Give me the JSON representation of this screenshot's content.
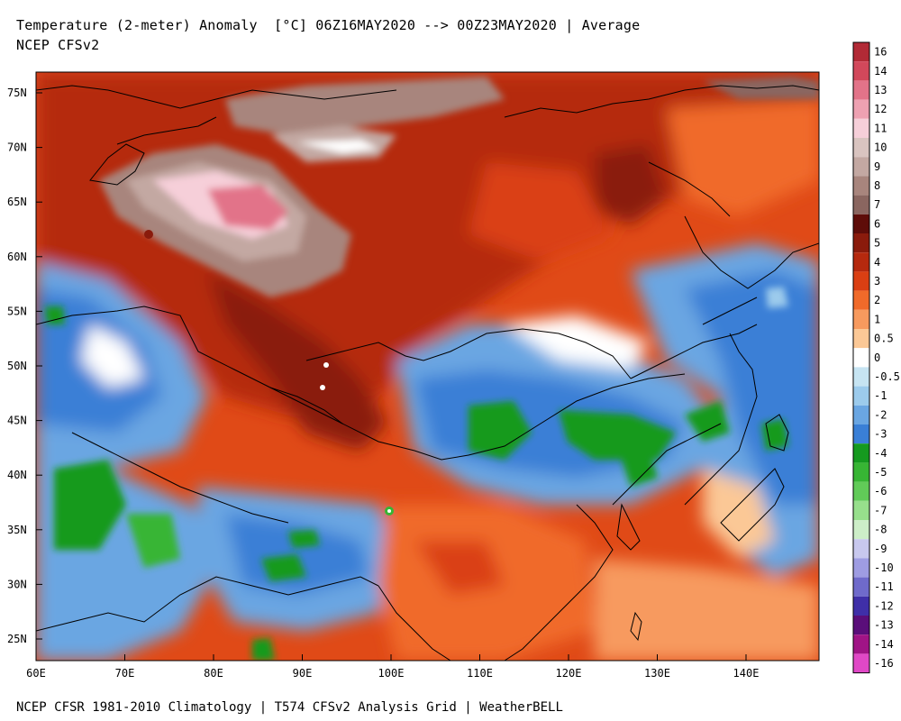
{
  "header": {
    "title": "Temperature (2-meter) Anomaly  [°C] 06Z16MAY2020 --> 00Z23MAY2020 | Average",
    "model": "NCEP CFSv2"
  },
  "footer": {
    "credit": "NCEP CFSR 1981-2010 Climatology | T574 CFSv2 Analysis Grid | WeatherBELL"
  },
  "axes": {
    "lat_labels": [
      "75N",
      "70N",
      "65N",
      "60N",
      "55N",
      "50N",
      "45N",
      "40N",
      "35N",
      "30N",
      "25N"
    ],
    "lon_labels": [
      "60E",
      "70E",
      "80E",
      "90E",
      "100E",
      "110E",
      "120E",
      "130E",
      "140E"
    ]
  },
  "colorbar": {
    "labels": [
      "16",
      "14",
      "13",
      "12",
      "11",
      "10",
      "9",
      "8",
      "7",
      "6",
      "5",
      "4",
      "3",
      "2",
      "1",
      "0.5",
      "0",
      "-0.5",
      "-1",
      "-2",
      "-3",
      "-4",
      "-5",
      "-6",
      "-7",
      "-8",
      "-9",
      "-10",
      "-11",
      "-12",
      "-13",
      "-14",
      "-16"
    ],
    "colors": [
      "#b22a36",
      "#d2485b",
      "#e27389",
      "#eea1b2",
      "#f6cfd9",
      "#d9c4c0",
      "#c3a8a2",
      "#a8857d",
      "#8a6660",
      "#5e0d09",
      "#8a1b0c",
      "#b5290e",
      "#da3f13",
      "#f06a2a",
      "#f79a5e",
      "#fbc896",
      "#ffffff",
      "#c6e4f2",
      "#9ccbec",
      "#6aa6e2",
      "#3a7fd6",
      "#159a1f",
      "#37b534",
      "#61cb58",
      "#97df8c",
      "#cdeec8",
      "#c8c8ee",
      "#9e9ce2",
      "#6f6acb",
      "#3f2fa8",
      "#5a0e7a",
      "#a01486",
      "#e048c6"
    ]
  }
}
